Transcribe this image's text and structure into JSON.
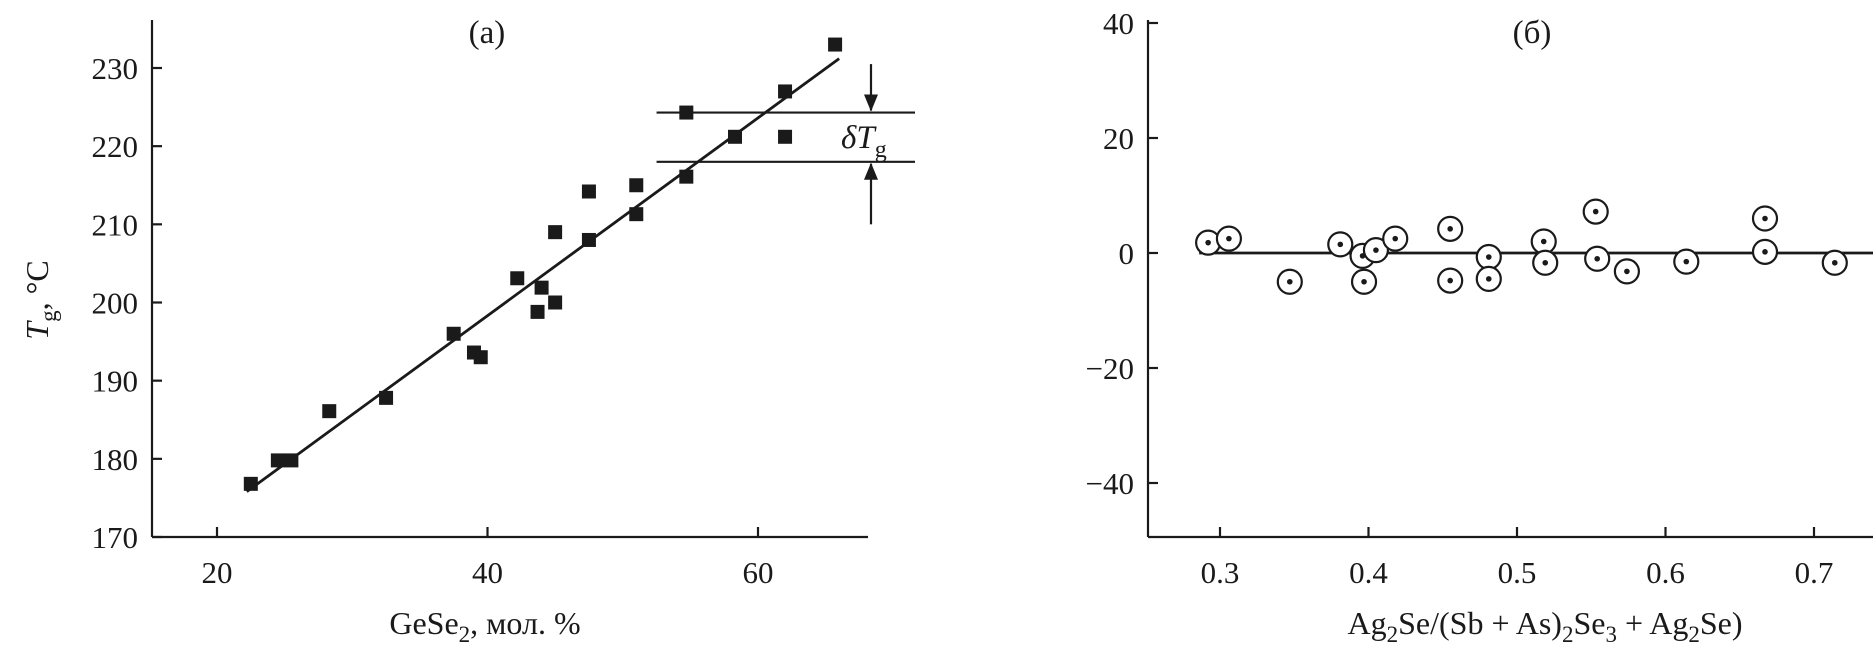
{
  "chart_data": [
    {
      "type": "scatter",
      "panel_label": "(a)",
      "ylabel_main": "T",
      "ylabel_sub": "g",
      "ylabel_tail": ", °C",
      "xlabel_main": "GeSe",
      "xlabel_sub": "2",
      "xlabel_tail": ", мол. %",
      "xlim": [
        15,
        68
      ],
      "ylim": [
        170,
        236
      ],
      "xticks": [
        20,
        40,
        60
      ],
      "yticks": [
        170,
        180,
        190,
        200,
        210,
        220,
        230
      ],
      "grid": false,
      "series": [
        {
          "marker": "filled-square",
          "points": [
            [
              22.5,
              176.8
            ],
            [
              24.5,
              179.8
            ],
            [
              25.5,
              179.8
            ],
            [
              28.3,
              186.1
            ],
            [
              32.5,
              187.8
            ],
            [
              37.5,
              196.0
            ],
            [
              39.0,
              193.6
            ],
            [
              39.5,
              193.0
            ],
            [
              42.2,
              203.1
            ],
            [
              43.7,
              198.8
            ],
            [
              44.0,
              201.9
            ],
            [
              45.0,
              200.0
            ],
            [
              45.0,
              209.0
            ],
            [
              47.5,
              214.2
            ],
            [
              47.5,
              208.0
            ],
            [
              51.0,
              215.0
            ],
            [
              51.0,
              211.3
            ],
            [
              54.7,
              224.3
            ],
            [
              54.7,
              216.1
            ],
            [
              58.3,
              221.2
            ],
            [
              62.0,
              227.0
            ],
            [
              62.0,
              221.2
            ],
            [
              65.7,
              233.0
            ]
          ]
        },
        {
          "name": "fit",
          "style": "solid-line",
          "points": [
            [
              22.2,
              175.8
            ],
            [
              66.0,
              231.2
            ]
          ]
        }
      ],
      "annotation": {
        "label_main": "δT",
        "label_sub": "g",
        "x_from": 52.5,
        "x_to": 68,
        "y_upper": 224.3,
        "y_lower": 218.0,
        "arrow_x": 66.5,
        "arrow_top_start": 230.5,
        "arrow_bottom_end": 210.0
      }
    },
    {
      "type": "scatter",
      "panel_label": "(б)",
      "xlabel_parts": [
        {
          "t": "Ag",
          "s": "n"
        },
        {
          "t": "2",
          "s": "sub"
        },
        {
          "t": "Se/(Sb + As)",
          "s": "n"
        },
        {
          "t": "2",
          "s": "sub"
        },
        {
          "t": "Se",
          "s": "n"
        },
        {
          "t": "3",
          "s": "sub"
        },
        {
          "t": " + Ag",
          "s": "n"
        },
        {
          "t": "2",
          "s": "sub"
        },
        {
          "t": "Se)",
          "s": "n"
        }
      ],
      "xlim": [
        0.25,
        0.72
      ],
      "ylim": [
        -50,
        40
      ],
      "xticks": [
        0.3,
        0.4,
        0.5,
        0.6,
        0.7
      ],
      "yticks": [
        40,
        20,
        0,
        -20,
        -40
      ],
      "ytick_labels": [
        "40",
        "20",
        "0",
        "−20",
        "−40"
      ],
      "grid": false,
      "series": [
        {
          "marker": "circle-dot",
          "points": [
            [
              0.292,
              1.8
            ],
            [
              0.306,
              2.5
            ],
            [
              0.347,
              -5.0
            ],
            [
              0.381,
              1.5
            ],
            [
              0.396,
              -0.5
            ],
            [
              0.397,
              -5.0
            ],
            [
              0.405,
              0.5
            ],
            [
              0.418,
              2.5
            ],
            [
              0.455,
              4.2
            ],
            [
              0.455,
              -4.8
            ],
            [
              0.481,
              -0.7
            ],
            [
              0.481,
              -4.5
            ],
            [
              0.518,
              2.0
            ],
            [
              0.519,
              -1.7
            ],
            [
              0.553,
              7.2
            ],
            [
              0.554,
              -1.0
            ],
            [
              0.574,
              -3.2
            ],
            [
              0.614,
              -1.5
            ],
            [
              0.667,
              6.0
            ],
            [
              0.667,
              0.2
            ],
            [
              0.714,
              -1.7
            ]
          ]
        },
        {
          "name": "baseline",
          "style": "solid-line",
          "points": [
            [
              0.29,
              0
            ],
            [
              0.72,
              0
            ]
          ]
        }
      ]
    }
  ]
}
